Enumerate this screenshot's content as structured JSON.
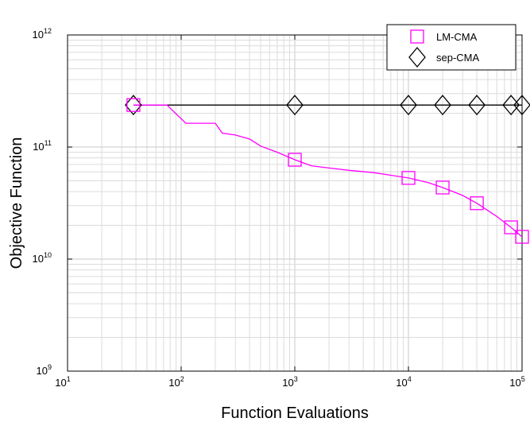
{
  "chart_data": {
    "type": "line",
    "xlabel": "Function Evaluations",
    "ylabel": "Objective Function",
    "x_scale": "log",
    "y_scale": "log",
    "xlim": [
      10,
      100000
    ],
    "ylim": [
      1000000000,
      1000000000000
    ],
    "grid": true,
    "legend_position": "top-right",
    "x_ticks": [
      {
        "value": 10,
        "base": "10",
        "exp": "1"
      },
      {
        "value": 100,
        "base": "10",
        "exp": "2"
      },
      {
        "value": 1000,
        "base": "10",
        "exp": "3"
      },
      {
        "value": 10000,
        "base": "10",
        "exp": "4"
      },
      {
        "value": 100000,
        "base": "10",
        "exp": "5"
      }
    ],
    "y_ticks": [
      {
        "value": 1000000000,
        "base": "10",
        "exp": "9"
      },
      {
        "value": 10000000000,
        "base": "10",
        "exp": "10"
      },
      {
        "value": 100000000000,
        "base": "10",
        "exp": "11"
      },
      {
        "value": 1000000000000,
        "base": "10",
        "exp": "12"
      }
    ],
    "series": [
      {
        "name": "LM-CMA",
        "color": "#ff00ff",
        "marker": "square",
        "line": [
          [
            38,
            237000000000
          ],
          [
            75,
            237000000000
          ],
          [
            110,
            163000000000
          ],
          [
            200,
            163000000000
          ],
          [
            230,
            133000000000
          ],
          [
            300,
            128000000000
          ],
          [
            400,
            118000000000
          ],
          [
            500,
            102000000000
          ],
          [
            700,
            90000000000
          ],
          [
            1000,
            77000000000
          ],
          [
            1400,
            68000000000
          ],
          [
            2000,
            65000000000
          ],
          [
            3000,
            62000000000
          ],
          [
            5000,
            59000000000
          ],
          [
            7000,
            56000000000
          ],
          [
            10000,
            53000000000
          ],
          [
            15000,
            48000000000
          ],
          [
            20000,
            43500000000
          ],
          [
            30000,
            37000000000
          ],
          [
            40000,
            31500000000
          ],
          [
            60000,
            24000000000
          ],
          [
            80000,
            19200000000
          ],
          [
            100000,
            15800000000
          ]
        ],
        "markers": [
          [
            38,
            237000000000
          ],
          [
            1000,
            77000000000
          ],
          [
            10000,
            53000000000
          ],
          [
            20000,
            43500000000
          ],
          [
            40000,
            31500000000
          ],
          [
            80000,
            19200000000
          ],
          [
            100000,
            15800000000
          ]
        ]
      },
      {
        "name": "sep-CMA",
        "color": "#000000",
        "marker": "diamond",
        "line": [
          [
            38,
            237000000000
          ],
          [
            100000,
            237000000000
          ]
        ],
        "markers": [
          [
            38,
            237000000000
          ],
          [
            1000,
            237000000000
          ],
          [
            10000,
            237000000000
          ],
          [
            20000,
            237000000000
          ],
          [
            40000,
            237000000000
          ],
          [
            80000,
            237000000000
          ],
          [
            100000,
            237000000000
          ]
        ]
      }
    ]
  }
}
